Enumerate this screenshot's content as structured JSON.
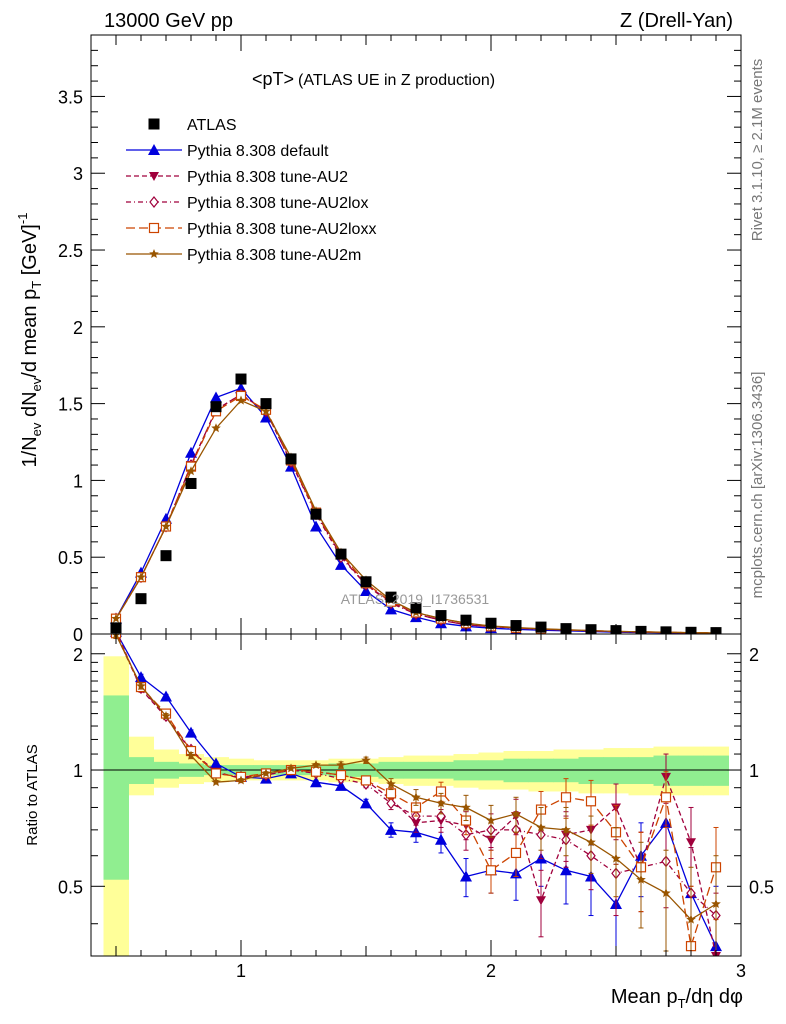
{
  "header": {
    "left": "13000 GeV pp",
    "right": "Z (Drell-Yan)"
  },
  "side_labels": {
    "rivet": "Rivet 3.1.10, ≥ 2.1M events",
    "mcplots": "mcplots.cern.ch [arXiv:1306.3436]"
  },
  "chart_data": [
    {
      "type": "scatter",
      "panel": "main",
      "title": "<pT>",
      "subtitle": "(ATLAS UE in Z production)",
      "ylabel": "1/N_ev dN_ev/d mean p_T [GeV]^-1",
      "watermark": "ATLAS_2019_I1736531",
      "xlim": [
        0.4,
        3.0
      ],
      "ylim": [
        0,
        3.9
      ],
      "yticks": [
        "0",
        "0.5",
        "1",
        "1.5",
        "2",
        "2.5",
        "3",
        "3.5"
      ],
      "ytick_values": [
        0,
        0.5,
        1,
        1.5,
        2,
        2.5,
        3,
        3.5
      ],
      "legend_position": "top-left",
      "x": [
        0.5,
        0.6,
        0.7,
        0.8,
        0.9,
        1.0,
        1.1,
        1.2,
        1.3,
        1.4,
        1.5,
        1.6,
        1.7,
        1.8,
        1.9,
        2.0,
        2.1,
        2.2,
        2.3,
        2.4,
        2.5,
        2.6,
        2.7,
        2.8,
        2.9
      ],
      "series": [
        {
          "name": "ATLAS",
          "color": "#000000",
          "marker": "square",
          "style": "none",
          "values": [
            0.04,
            0.23,
            0.51,
            0.98,
            1.48,
            1.66,
            1.5,
            1.14,
            0.78,
            0.52,
            0.34,
            0.24,
            0.17,
            0.12,
            0.09,
            0.07,
            0.055,
            0.045,
            0.035,
            0.028,
            0.022,
            0.017,
            0.014,
            0.011,
            0.009
          ]
        },
        {
          "name": "Pythia 8.308 default",
          "color": "#0000dd",
          "marker": "triangle-up",
          "style": "solid",
          "values": [
            0.1,
            0.4,
            0.75,
            1.18,
            1.54,
            1.6,
            1.41,
            1.09,
            0.7,
            0.45,
            0.28,
            0.16,
            0.11,
            0.07,
            0.05,
            0.038,
            0.03,
            0.025,
            0.02,
            0.016,
            0.012,
            0.01,
            0.008,
            0.006,
            0.005
          ]
        },
        {
          "name": "Pythia 8.308 tune-AU2",
          "color": "#a0003c",
          "marker": "triangle-down",
          "style": "dashed",
          "values": [
            0.1,
            0.37,
            0.7,
            1.1,
            1.46,
            1.56,
            1.45,
            1.12,
            0.79,
            0.51,
            0.32,
            0.21,
            0.13,
            0.09,
            0.06,
            0.048,
            0.04,
            0.032,
            0.026,
            0.021,
            0.016,
            0.013,
            0.011,
            0.008,
            0.006
          ]
        },
        {
          "name": "Pythia 8.308 tune-AU2lox",
          "color": "#a0003c",
          "marker": "diamond-open",
          "style": "dashdot",
          "values": [
            0.1,
            0.37,
            0.7,
            1.1,
            1.46,
            1.56,
            1.45,
            1.12,
            0.78,
            0.5,
            0.32,
            0.2,
            0.13,
            0.09,
            0.06,
            0.048,
            0.038,
            0.031,
            0.025,
            0.02,
            0.015,
            0.012,
            0.01,
            0.008,
            0.006
          ]
        },
        {
          "name": "Pythia 8.308 tune-AU2loxx",
          "color": "#cc4400",
          "marker": "square-open",
          "style": "longdash",
          "values": [
            0.1,
            0.37,
            0.7,
            1.09,
            1.45,
            1.55,
            1.46,
            1.13,
            0.79,
            0.52,
            0.33,
            0.21,
            0.14,
            0.1,
            0.07,
            0.05,
            0.04,
            0.033,
            0.027,
            0.022,
            0.017,
            0.014,
            0.011,
            0.009,
            0.007
          ]
        },
        {
          "name": "Pythia 8.308 tune-AU2m",
          "color": "#995500",
          "marker": "star",
          "style": "solid",
          "values": [
            0.1,
            0.37,
            0.7,
            1.06,
            1.34,
            1.52,
            1.45,
            1.15,
            0.8,
            0.53,
            0.35,
            0.22,
            0.14,
            0.1,
            0.07,
            0.052,
            0.042,
            0.034,
            0.028,
            0.022,
            0.017,
            0.014,
            0.011,
            0.009,
            0.007
          ]
        }
      ]
    },
    {
      "type": "scatter",
      "panel": "ratio",
      "ylabel": "Ratio to ATLAS",
      "xlabel": "Mean p_T/dη dφ",
      "xlim": [
        0.4,
        3.0
      ],
      "ylim": [
        0.33,
        2.25
      ],
      "xticks": [
        "1",
        "2",
        "3"
      ],
      "xtick_values": [
        1,
        2,
        3
      ],
      "yticks": [
        "0.5",
        "1",
        "2"
      ],
      "ytick_values": [
        0.5,
        1,
        2
      ],
      "band_inner": {
        "color": "#90ee90",
        "lower": [
          0.52,
          0.92,
          0.95,
          0.96,
          0.97,
          0.97,
          0.97,
          0.97,
          0.97,
          0.96,
          0.96,
          0.95,
          0.95,
          0.95,
          0.94,
          0.94,
          0.93,
          0.93,
          0.93,
          0.92,
          0.92,
          0.92,
          0.91,
          0.91,
          0.91
        ],
        "upper": [
          1.56,
          1.08,
          1.05,
          1.04,
          1.03,
          1.03,
          1.03,
          1.03,
          1.03,
          1.04,
          1.04,
          1.05,
          1.05,
          1.05,
          1.06,
          1.06,
          1.07,
          1.07,
          1.07,
          1.08,
          1.08,
          1.08,
          1.09,
          1.09,
          1.09
        ]
      },
      "band_outer": {
        "color": "#ffff99",
        "lower": [
          0.33,
          0.86,
          0.9,
          0.92,
          0.93,
          0.94,
          0.94,
          0.94,
          0.94,
          0.93,
          0.93,
          0.92,
          0.91,
          0.91,
          0.9,
          0.89,
          0.89,
          0.88,
          0.88,
          0.87,
          0.87,
          0.86,
          0.86,
          0.86,
          0.86
        ],
        "upper": [
          1.97,
          1.22,
          1.13,
          1.1,
          1.08,
          1.07,
          1.06,
          1.06,
          1.06,
          1.07,
          1.07,
          1.08,
          1.09,
          1.09,
          1.1,
          1.11,
          1.12,
          1.12,
          1.13,
          1.13,
          1.14,
          1.14,
          1.15,
          1.15,
          1.15
        ]
      },
      "x": [
        0.5,
        0.6,
        0.7,
        0.8,
        0.9,
        1.0,
        1.1,
        1.2,
        1.3,
        1.4,
        1.5,
        1.6,
        1.7,
        1.8,
        1.9,
        2.0,
        2.1,
        2.2,
        2.3,
        2.4,
        2.5,
        2.6,
        2.7,
        2.8,
        2.9
      ],
      "series": [
        {
          "name": "Pythia 8.308 default",
          "color": "#0000dd",
          "marker": "triangle-up",
          "style": "solid",
          "values": [
            2.28,
            1.74,
            1.55,
            1.25,
            1.04,
            0.96,
            0.95,
            0.98,
            0.93,
            0.91,
            0.82,
            0.7,
            0.69,
            0.66,
            0.53,
            0.55,
            0.54,
            0.59,
            0.55,
            0.53,
            0.45,
            0.6,
            0.73,
            0.48,
            0.35
          ],
          "errors": [
            0.05,
            0.03,
            0.02,
            0.02,
            0.01,
            0.01,
            0.01,
            0.01,
            0.01,
            0.02,
            0.02,
            0.03,
            0.04,
            0.05,
            0.06,
            0.07,
            0.08,
            0.09,
            0.1,
            0.11,
            0.12,
            0.13,
            0.14,
            0.15,
            0.15
          ]
        },
        {
          "name": "Pythia 8.308 tune-AU2",
          "color": "#a0003c",
          "marker": "triangle-down",
          "style": "dashed",
          "values": [
            2.3,
            1.62,
            1.37,
            1.12,
            0.99,
            0.95,
            0.97,
            1.0,
            0.99,
            0.97,
            0.94,
            0.84,
            0.73,
            0.74,
            0.72,
            0.66,
            0.76,
            0.46,
            0.68,
            0.7,
            0.8,
            0.56,
            0.96,
            0.65,
            0.33
          ],
          "errors": [
            0.05,
            0.03,
            0.02,
            0.02,
            0.01,
            0.01,
            0.01,
            0.01,
            0.01,
            0.02,
            0.02,
            0.03,
            0.04,
            0.05,
            0.06,
            0.07,
            0.08,
            0.09,
            0.1,
            0.11,
            0.12,
            0.13,
            0.14,
            0.15,
            0.15
          ]
        },
        {
          "name": "Pythia 8.308 tune-AU2lox",
          "color": "#a0003c",
          "marker": "diamond-open",
          "style": "dashdot",
          "values": [
            2.25,
            1.63,
            1.38,
            1.13,
            0.98,
            0.96,
            0.97,
            1.0,
            0.98,
            0.95,
            0.92,
            0.82,
            0.76,
            0.76,
            0.68,
            0.7,
            0.7,
            0.68,
            0.66,
            0.6,
            0.54,
            0.56,
            0.58,
            0.48,
            0.42
          ],
          "errors": [
            0.05,
            0.03,
            0.02,
            0.02,
            0.01,
            0.01,
            0.01,
            0.01,
            0.01,
            0.02,
            0.02,
            0.03,
            0.04,
            0.05,
            0.06,
            0.07,
            0.08,
            0.09,
            0.1,
            0.11,
            0.12,
            0.13,
            0.14,
            0.15,
            0.15
          ]
        },
        {
          "name": "Pythia 8.308 tune-AU2loxx",
          "color": "#cc4400",
          "marker": "square-open",
          "style": "longdash",
          "values": [
            2.26,
            1.64,
            1.4,
            1.12,
            0.98,
            0.96,
            0.98,
            1.0,
            0.99,
            0.97,
            0.94,
            0.87,
            0.8,
            0.88,
            0.74,
            0.55,
            0.61,
            0.79,
            0.85,
            0.83,
            0.69,
            0.56,
            0.85,
            0.35,
            0.56
          ],
          "errors": [
            0.05,
            0.03,
            0.02,
            0.02,
            0.01,
            0.01,
            0.01,
            0.01,
            0.01,
            0.02,
            0.02,
            0.03,
            0.04,
            0.05,
            0.06,
            0.07,
            0.08,
            0.09,
            0.1,
            0.11,
            0.12,
            0.13,
            0.14,
            0.15,
            0.15
          ]
        },
        {
          "name": "Pythia 8.308 tune-AU2m",
          "color": "#995500",
          "marker": "star",
          "style": "solid",
          "values": [
            2.24,
            1.65,
            1.38,
            1.09,
            0.93,
            0.94,
            0.98,
            1.01,
            1.03,
            1.03,
            1.06,
            0.92,
            0.85,
            0.82,
            0.8,
            0.74,
            0.77,
            0.71,
            0.7,
            0.65,
            0.59,
            0.52,
            0.48,
            0.41,
            0.45
          ],
          "errors": [
            0.05,
            0.03,
            0.02,
            0.02,
            0.01,
            0.01,
            0.01,
            0.01,
            0.01,
            0.02,
            0.02,
            0.03,
            0.04,
            0.05,
            0.06,
            0.07,
            0.08,
            0.09,
            0.1,
            0.11,
            0.12,
            0.13,
            0.14,
            0.15,
            0.15
          ]
        }
      ]
    }
  ]
}
